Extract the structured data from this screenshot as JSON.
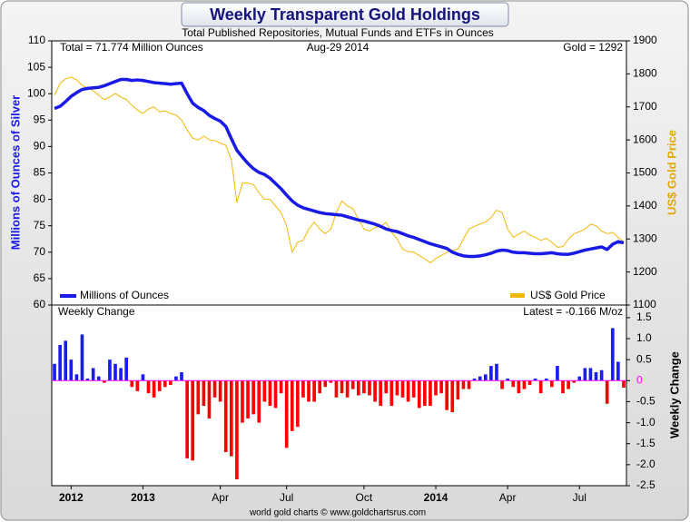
{
  "header": {
    "title": "Weekly Transparent Gold Holdings",
    "subtitle": "Total Published Repositories, Mutual Funds and ETFs in Ounces"
  },
  "footer": "world gold charts © www.goldchartsrus.com",
  "chart_data": [
    {
      "type": "line",
      "ylabel": "Millions of Ounces of Silver",
      "y2label": "US$ Gold Price",
      "annotations": [
        "Total = 71.774 Million Ounces",
        "Aug-29  2014",
        "Gold = 1292"
      ],
      "ylim": [
        60,
        110
      ],
      "yticks": [
        60,
        65,
        70,
        75,
        80,
        85,
        90,
        95,
        100,
        105,
        110
      ],
      "y2lim": [
        1100,
        1900
      ],
      "y2ticks": [
        1100,
        1200,
        1300,
        1400,
        1500,
        1600,
        1700,
        1800,
        1900
      ],
      "legend": "bottom",
      "series": [
        {
          "name": "Millions of Ounces",
          "color": "#1a1ae6",
          "values": [
            97.2,
            97.6,
            98.5,
            99.5,
            100.2,
            100.8,
            101,
            101.1,
            101.2,
            101.5,
            101.9,
            102.3,
            102.7,
            102.7,
            102.5,
            102.6,
            102.5,
            102.3,
            102.1,
            102,
            101.9,
            101.8,
            101.9,
            102,
            100,
            98.2,
            97.4,
            96.8,
            95.9,
            95.3,
            94.8,
            93.8,
            91.5,
            89.3,
            88,
            86.8,
            85.8,
            85.1,
            84.7,
            84,
            83,
            82,
            80.8,
            79.7,
            78.9,
            78.4,
            78.1,
            77.8,
            77.5,
            77.3,
            77.2,
            77.1,
            77,
            76.7,
            76.4,
            76.1,
            75.9,
            75.6,
            75.3,
            74.9,
            74.4,
            74.1,
            73.9,
            73.5,
            73.1,
            72.8,
            72.4,
            72,
            71.6,
            71.3,
            71,
            70.7,
            70,
            69.6,
            69.3,
            69.2,
            69.2,
            69.3,
            69.5,
            69.8,
            70.2,
            70.4,
            70.3,
            70,
            69.9,
            69.9,
            69.8,
            69.7,
            69.7,
            69.8,
            69.9,
            69.7,
            69.6,
            69.6,
            69.8,
            70.1,
            70.4,
            70.6,
            70.8,
            71,
            70.5,
            71.5,
            72,
            71.774
          ]
        },
        {
          "name": "US$ Gold Price",
          "color": "#f2b807",
          "axis": "y2",
          "values": [
            1735,
            1771,
            1785,
            1790,
            1782,
            1765,
            1758,
            1749,
            1735,
            1722,
            1730,
            1741,
            1730,
            1722,
            1705,
            1690,
            1680,
            1694,
            1700,
            1685,
            1688,
            1680,
            1675,
            1660,
            1630,
            1605,
            1600,
            1612,
            1600,
            1598,
            1590,
            1584,
            1540,
            1411,
            1469,
            1469,
            1465,
            1440,
            1420,
            1420,
            1400,
            1380,
            1340,
            1260,
            1290,
            1296,
            1330,
            1351,
            1330,
            1316,
            1330,
            1380,
            1415,
            1400,
            1392,
            1360,
            1330,
            1324,
            1335,
            1338,
            1351,
            1320,
            1300,
            1269,
            1262,
            1260,
            1250,
            1240,
            1228,
            1241,
            1250,
            1260,
            1265,
            1269,
            1300,
            1330,
            1338,
            1345,
            1351,
            1365,
            1387,
            1380,
            1330,
            1305,
            1315,
            1324,
            1312,
            1305,
            1296,
            1302,
            1290,
            1275,
            1277,
            1300,
            1316,
            1322,
            1330,
            1345,
            1340,
            1324,
            1316,
            1320,
            1305,
            1292
          ]
        }
      ]
    },
    {
      "type": "bar",
      "title": "Weekly Change",
      "annotation": "Latest = -0.166 M/oz",
      "y2label": "Weekly Change",
      "positive_color": "#1a1aff",
      "negative_color": "#ff0000",
      "zero_line_color": "#ff00ff",
      "ylim": [
        -2.5,
        1.8
      ],
      "yticks": [
        1.5,
        {
          "value": 1,
          "label": "1.0"
        },
        0.5,
        0,
        -0.5,
        {
          "value": -1,
          "label": "-1.0"
        },
        -1.5,
        {
          "value": -2,
          "label": "-2.0"
        },
        -2.5
      ],
      "categories": [
        null,
        null,
        null,
        "2012",
        null,
        null,
        null,
        null,
        null,
        null,
        null,
        null,
        null,
        null,
        null,
        null,
        "2013",
        null,
        null,
        null,
        null,
        null,
        null,
        null,
        null,
        null,
        null,
        null,
        null,
        null,
        "Apr",
        null,
        null,
        null,
        null,
        null,
        null,
        null,
        null,
        null,
        null,
        null,
        "Jul",
        null,
        null,
        null,
        null,
        null,
        null,
        null,
        null,
        null,
        null,
        null,
        null,
        null,
        "Oct",
        null,
        null,
        null,
        null,
        null,
        null,
        null,
        null,
        null,
        null,
        null,
        null,
        "2014",
        null,
        null,
        null,
        null,
        null,
        null,
        null,
        null,
        null,
        null,
        null,
        null,
        "Apr",
        null,
        null,
        null,
        null,
        null,
        null,
        null,
        null,
        null,
        null,
        null,
        null,
        "Jul",
        null,
        null,
        null,
        null,
        null,
        null,
        null,
        null
      ],
      "values": [
        0.4,
        0.85,
        0.95,
        0.5,
        0.15,
        1.1,
        0.05,
        0.3,
        0.1,
        -0.05,
        0.5,
        0.4,
        0.3,
        0.55,
        -0.15,
        -0.25,
        0.15,
        -0.3,
        -0.4,
        -0.25,
        -0.15,
        -0.1,
        0.1,
        0.2,
        -1.85,
        -1.9,
        -0.8,
        -0.6,
        -0.9,
        -0.4,
        -0.5,
        -1.7,
        -1.8,
        -2.35,
        -1.0,
        -0.9,
        -0.8,
        -1.0,
        -0.5,
        -0.6,
        -0.65,
        -0.3,
        -1.6,
        -1.2,
        -1.1,
        -0.4,
        -0.5,
        -0.5,
        -0.3,
        -0.15,
        -0.05,
        -0.4,
        -0.3,
        -0.4,
        -0.2,
        -0.35,
        -0.3,
        -0.35,
        -0.5,
        -0.6,
        -0.3,
        -0.6,
        -0.35,
        -0.4,
        -0.5,
        -0.4,
        -0.65,
        -0.6,
        -0.6,
        -0.35,
        -0.3,
        -0.7,
        -0.75,
        -0.45,
        -0.2,
        -0.2,
        0.05,
        0.1,
        0.15,
        0.35,
        0.4,
        -0.2,
        0.05,
        -0.15,
        -0.3,
        -0.2,
        -0.1,
        0.05,
        -0.3,
        0.05,
        -0.15,
        0.35,
        -0.3,
        -0.2,
        -0.05,
        0.1,
        0.3,
        0.3,
        0.2,
        0.25,
        -0.55,
        1.25,
        0.45,
        -0.166
      ]
    }
  ]
}
